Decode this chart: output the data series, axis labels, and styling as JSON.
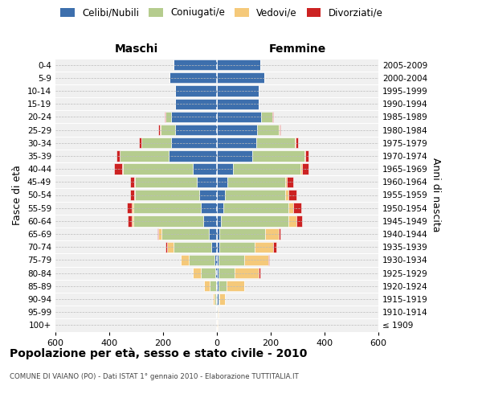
{
  "age_groups": [
    "100+",
    "95-99",
    "90-94",
    "85-89",
    "80-84",
    "75-79",
    "70-74",
    "65-69",
    "60-64",
    "55-59",
    "50-54",
    "45-49",
    "40-44",
    "35-39",
    "30-34",
    "25-29",
    "20-24",
    "15-19",
    "10-14",
    "5-9",
    "0-4"
  ],
  "birth_years": [
    "≤ 1909",
    "1910-1914",
    "1915-1919",
    "1920-1924",
    "1925-1929",
    "1930-1934",
    "1935-1939",
    "1940-1944",
    "1945-1949",
    "1950-1954",
    "1955-1959",
    "1960-1964",
    "1965-1969",
    "1970-1974",
    "1975-1979",
    "1980-1984",
    "1985-1989",
    "1990-1994",
    "1995-1999",
    "2000-2004",
    "2005-2009"
  ],
  "male": {
    "celibi": [
      0,
      0,
      2,
      3,
      5,
      10,
      20,
      30,
      50,
      60,
      65,
      75,
      90,
      180,
      170,
      155,
      170,
      155,
      155,
      175,
      160
    ],
    "coniugati": [
      0,
      2,
      8,
      25,
      55,
      95,
      140,
      175,
      260,
      250,
      240,
      230,
      260,
      180,
      110,
      55,
      20,
      0,
      0,
      0,
      0
    ],
    "vedovi": [
      0,
      2,
      5,
      20,
      30,
      30,
      25,
      12,
      5,
      5,
      3,
      2,
      2,
      2,
      2,
      2,
      2,
      0,
      0,
      0,
      0
    ],
    "divorziati": [
      0,
      0,
      0,
      0,
      0,
      0,
      5,
      5,
      15,
      20,
      15,
      15,
      30,
      12,
      8,
      5,
      2,
      0,
      0,
      0,
      0
    ]
  },
  "female": {
    "nubili": [
      0,
      2,
      5,
      5,
      5,
      5,
      10,
      10,
      15,
      25,
      30,
      40,
      60,
      130,
      145,
      150,
      165,
      155,
      155,
      175,
      160
    ],
    "coniugate": [
      0,
      0,
      5,
      30,
      60,
      95,
      130,
      170,
      250,
      240,
      225,
      215,
      250,
      195,
      145,
      80,
      40,
      0,
      0,
      0,
      0
    ],
    "vedove": [
      2,
      5,
      20,
      65,
      90,
      90,
      70,
      50,
      30,
      18,
      10,
      5,
      5,
      3,
      2,
      2,
      2,
      0,
      0,
      0,
      0
    ],
    "divorziate": [
      0,
      0,
      0,
      0,
      5,
      5,
      10,
      5,
      20,
      30,
      30,
      25,
      25,
      12,
      8,
      5,
      2,
      0,
      0,
      0,
      0
    ]
  },
  "colors": {
    "celibi": "#3d6fad",
    "coniugati": "#b5cc8e",
    "vedovi": "#f5c97a",
    "divorziati": "#cc2222"
  },
  "xlim": 600,
  "title": "Popolazione per età, sesso e stato civile - 2010",
  "subtitle": "COMUNE DI VAIANO (PO) - Dati ISTAT 1° gennaio 2010 - Elaborazione TUTTITALIA.IT",
  "ylabel_left": "Fasce di età",
  "ylabel_right": "Anni di nascita",
  "xlabel_male": "Maschi",
  "xlabel_female": "Femmine",
  "legend_labels": [
    "Celibi/Nubili",
    "Coniugati/e",
    "Vedovi/e",
    "Divorziati/e"
  ],
  "plot_bg": "#f0f0f0"
}
